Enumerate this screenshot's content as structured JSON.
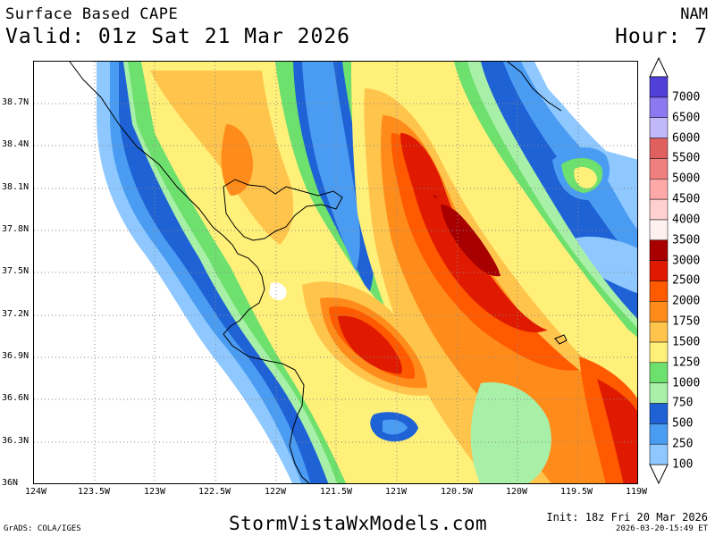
{
  "header": {
    "product": "Surface Based CAPE",
    "valid": "Valid: 01z Sat 21 Mar 2026",
    "model": "NAM",
    "hour": "Hour: 7"
  },
  "axes": {
    "lat_labels": [
      "38.7N",
      "38.4N",
      "38.1N",
      "37.8N",
      "37.5N",
      "37.2N",
      "36.9N",
      "36.6N",
      "36.3N",
      "36N"
    ],
    "lon_labels": [
      "124W",
      "123.5W",
      "123W",
      "122.5W",
      "122W",
      "121.5W",
      "121W",
      "120.5W",
      "120W",
      "119.5W",
      "119W"
    ]
  },
  "colorbar": {
    "levels": [
      "100",
      "250",
      "500",
      "750",
      "1000",
      "1250",
      "1500",
      "1750",
      "2000",
      "2500",
      "3000",
      "3500",
      "4000",
      "4500",
      "5000",
      "5500",
      "6000",
      "6500",
      "7000"
    ],
    "colors": [
      "#8ec8ff",
      "#4a9cf2",
      "#1e62d6",
      "#a8f0a8",
      "#6ee06e",
      "#fff07a",
      "#ffc44c",
      "#ff8c1a",
      "#ff5a00",
      "#e01a00",
      "#a80000",
      "#fff0f0",
      "#ffd0d0",
      "#ffa8a8",
      "#f08080",
      "#e06060",
      "#c0b8f8",
      "#8c78f0",
      "#5040d8"
    ]
  },
  "footer": {
    "grads": "GrADS: COLA/IGES",
    "site": "StormVistaWxModels.com",
    "init": "Init: 18z Fri 20 Mar 2026",
    "stamp": "2026-03-20-15:49 ET"
  }
}
